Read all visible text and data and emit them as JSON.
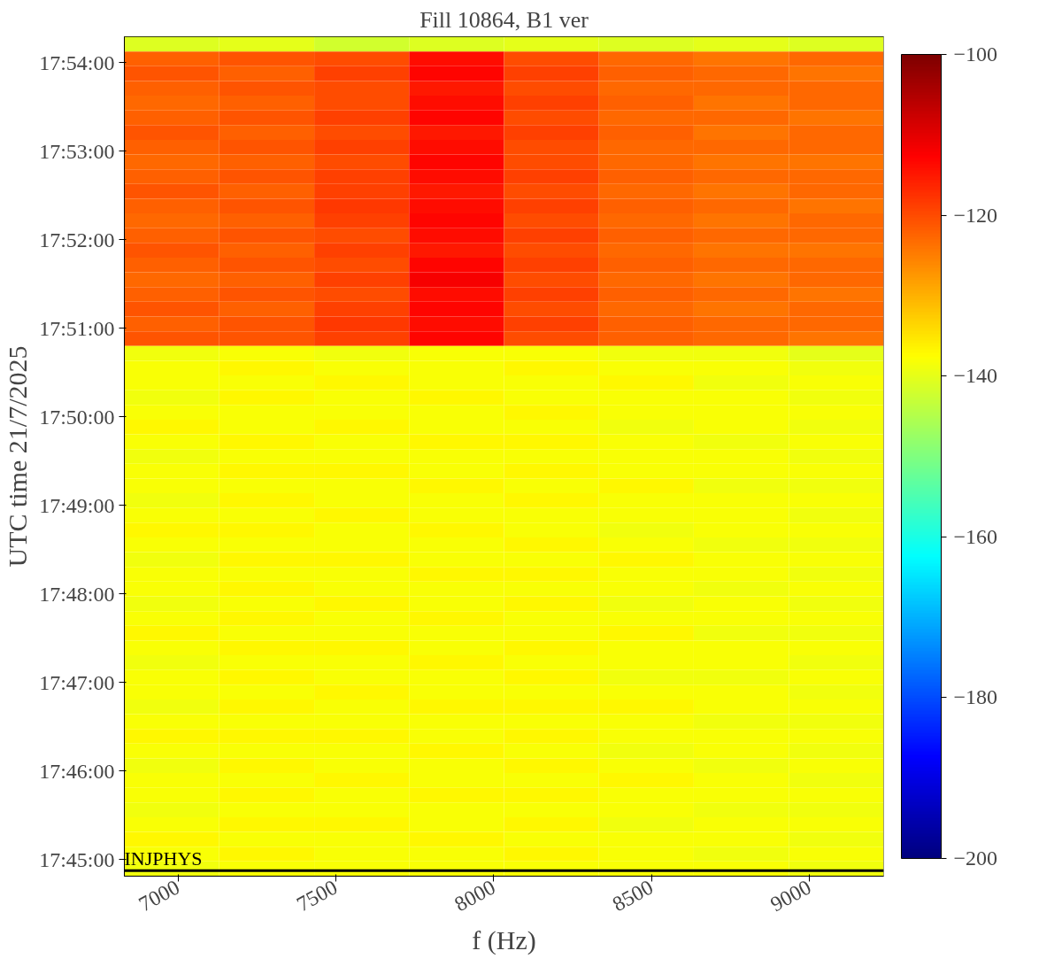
{
  "chart_data": {
    "type": "heatmap",
    "title": "Fill 10864, B1 ver",
    "xlabel": "f (Hz)",
    "ylabel": "UTC time 21/7/2025",
    "x": [
      6980,
      7281,
      7582,
      7882,
      8183,
      8483,
      8784,
      9085
    ],
    "cells": [
      [
        -141,
        -140,
        -142,
        -141,
        -140,
        -141,
        -140,
        -141
      ],
      [
        -122,
        -121,
        -120,
        -114,
        -120,
        -123,
        -124,
        -123
      ],
      [
        -121,
        -122,
        -119,
        -113,
        -119,
        -122,
        -123,
        -124
      ],
      [
        -122,
        -121,
        -120,
        -115,
        -120,
        -123,
        -123,
        -123
      ],
      [
        -123,
        -122,
        -120,
        -114,
        -119,
        -122,
        -124,
        -123
      ],
      [
        -122,
        -121,
        -119,
        -113,
        -120,
        -123,
        -123,
        -124
      ],
      [
        -121,
        -122,
        -120,
        -115,
        -119,
        -122,
        -124,
        -123
      ],
      [
        -122,
        -121,
        -119,
        -114,
        -120,
        -123,
        -123,
        -123
      ],
      [
        -123,
        -122,
        -120,
        -113,
        -120,
        -123,
        -124,
        -124
      ],
      [
        -122,
        -121,
        -119,
        -114,
        -119,
        -122,
        -123,
        -123
      ],
      [
        -121,
        -122,
        -119,
        -115,
        -120,
        -123,
        -124,
        -123
      ],
      [
        -122,
        -121,
        -118,
        -114,
        -119,
        -122,
        -123,
        -124
      ],
      [
        -123,
        -122,
        -119,
        -113,
        -120,
        -123,
        -124,
        -123
      ],
      [
        -122,
        -121,
        -120,
        -114,
        -119,
        -122,
        -123,
        -123
      ],
      [
        -121,
        -122,
        -119,
        -115,
        -120,
        -123,
        -124,
        -124
      ],
      [
        -122,
        -121,
        -120,
        -113,
        -119,
        -122,
        -123,
        -123
      ],
      [
        -123,
        -122,
        -119,
        -112,
        -120,
        -123,
        -124,
        -123
      ],
      [
        -122,
        -121,
        -120,
        -114,
        -119,
        -122,
        -123,
        -124
      ],
      [
        -121,
        -122,
        -119,
        -113,
        -120,
        -123,
        -124,
        -123
      ],
      [
        -122,
        -121,
        -118,
        -114,
        -119,
        -122,
        -123,
        -123
      ],
      [
        -121,
        -121,
        -119,
        -113,
        -120,
        -122,
        -123,
        -124
      ],
      [
        -139,
        -138,
        -139,
        -138,
        -138,
        -139,
        -139,
        -140
      ],
      [
        -138,
        -137,
        -138,
        -138,
        -137,
        -138,
        -138,
        -139
      ],
      [
        -138,
        -138,
        -137,
        -138,
        -138,
        -137,
        -139,
        -138
      ],
      [
        -139,
        -137,
        -138,
        -137,
        -138,
        -138,
        -138,
        -139
      ],
      [
        -138,
        -138,
        -138,
        -138,
        -137,
        -138,
        -138,
        -138
      ],
      [
        -137,
        -138,
        -137,
        -138,
        -138,
        -139,
        -138,
        -139
      ],
      [
        -138,
        -137,
        -138,
        -137,
        -137,
        -138,
        -139,
        -138
      ],
      [
        -139,
        -138,
        -138,
        -138,
        -138,
        -138,
        -138,
        -139
      ],
      [
        -138,
        -137,
        -137,
        -138,
        -137,
        -138,
        -138,
        -138
      ],
      [
        -138,
        -138,
        -138,
        -137,
        -138,
        -137,
        -139,
        -139
      ],
      [
        -139,
        -137,
        -138,
        -138,
        -137,
        -138,
        -138,
        -138
      ],
      [
        -138,
        -138,
        -137,
        -138,
        -138,
        -138,
        -138,
        -139
      ],
      [
        -137,
        -137,
        -138,
        -137,
        -138,
        -139,
        -138,
        -138
      ],
      [
        -138,
        -138,
        -138,
        -138,
        -137,
        -138,
        -139,
        -139
      ],
      [
        -139,
        -137,
        -137,
        -138,
        -138,
        -137,
        -138,
        -138
      ],
      [
        -138,
        -138,
        -138,
        -137,
        -137,
        -138,
        -138,
        -139
      ],
      [
        -138,
        -137,
        -138,
        -138,
        -138,
        -138,
        -139,
        -138
      ],
      [
        -139,
        -138,
        -137,
        -138,
        -137,
        -139,
        -138,
        -139
      ],
      [
        -138,
        -137,
        -138,
        -137,
        -138,
        -138,
        -138,
        -138
      ],
      [
        -137,
        -138,
        -138,
        -138,
        -138,
        -137,
        -139,
        -139
      ],
      [
        -138,
        -137,
        -137,
        -138,
        -137,
        -138,
        -138,
        -138
      ],
      [
        -139,
        -138,
        -138,
        -137,
        -138,
        -138,
        -138,
        -139
      ],
      [
        -138,
        -137,
        -138,
        -138,
        -137,
        -139,
        -139,
        -138
      ],
      [
        -138,
        -138,
        -137,
        -138,
        -138,
        -138,
        -138,
        -139
      ],
      [
        -139,
        -137,
        -138,
        -137,
        -137,
        -137,
        -138,
        -138
      ],
      [
        -138,
        -138,
        -138,
        -138,
        -138,
        -138,
        -139,
        -139
      ],
      [
        -137,
        -137,
        -137,
        -138,
        -137,
        -138,
        -138,
        -138
      ],
      [
        -138,
        -138,
        -138,
        -137,
        -138,
        -139,
        -138,
        -139
      ],
      [
        -139,
        -137,
        -138,
        -138,
        -137,
        -138,
        -139,
        -138
      ],
      [
        -138,
        -138,
        -137,
        -138,
        -138,
        -137,
        -138,
        -139
      ],
      [
        -138,
        -137,
        -138,
        -137,
        -137,
        -138,
        -138,
        -138
      ],
      [
        -139,
        -138,
        -138,
        -138,
        -138,
        -138,
        -139,
        -139
      ],
      [
        -138,
        -137,
        -137,
        -138,
        -137,
        -139,
        -138,
        -138
      ],
      [
        -137,
        -138,
        -138,
        -137,
        -138,
        -138,
        -138,
        -139
      ],
      [
        -138,
        -137,
        -138,
        -138,
        -137,
        -138,
        -139,
        -138
      ],
      [
        -139,
        -138,
        -138,
        -138,
        -138,
        -138,
        -138,
        -139
      ]
    ],
    "xlim": [
      6830,
      9235
    ],
    "xticks": [
      7000,
      7500,
      8000,
      8500,
      9000
    ],
    "ylim": [
      17.746889,
      17.904833
    ],
    "yticks": [
      {
        "value": 17.75,
        "label": "17:45:00"
      },
      {
        "value": 17.766667,
        "label": "17:46:00"
      },
      {
        "value": 17.783333,
        "label": "17:47:00"
      },
      {
        "value": 17.8,
        "label": "17:48:00"
      },
      {
        "value": 17.816667,
        "label": "17:49:00"
      },
      {
        "value": 17.833333,
        "label": "17:50:00"
      },
      {
        "value": 17.85,
        "label": "17:51:00"
      },
      {
        "value": 17.866667,
        "label": "17:52:00"
      },
      {
        "value": 17.883333,
        "label": "17:53:00"
      },
      {
        "value": 17.9,
        "label": "17:54:00"
      }
    ],
    "clim": [
      -200,
      -100
    ],
    "cticks": [
      {
        "value": -200,
        "label": "−200"
      },
      {
        "value": -180,
        "label": "−180"
      },
      {
        "value": -160,
        "label": "−160"
      },
      {
        "value": -140,
        "label": "−140"
      },
      {
        "value": -120,
        "label": "−120"
      },
      {
        "value": -100,
        "label": "−100"
      }
    ],
    "ref_lines": [
      {
        "axis": "y",
        "value": 17.747917,
        "label": "INJPHYS",
        "color": "#000000"
      }
    ]
  }
}
